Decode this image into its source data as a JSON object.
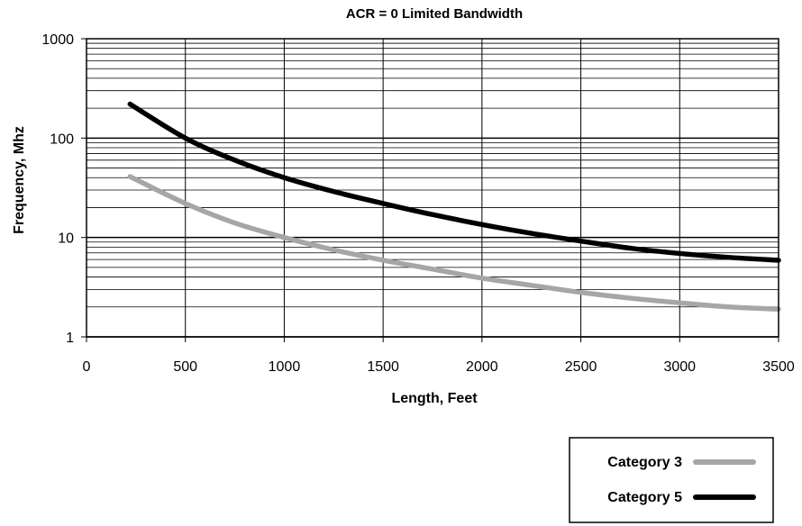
{
  "chart_data": {
    "type": "line",
    "title": "ACR = 0 Limited Bandwidth",
    "xlabel": "Length, Feet",
    "ylabel": "Frequency, Mhz",
    "xlim": [
      0,
      3500
    ],
    "ylim": [
      1,
      1000
    ],
    "y_scale": "log",
    "x_ticks": [
      "0",
      "500",
      "1000",
      "1500",
      "2000",
      "2500",
      "3000",
      "3500"
    ],
    "y_ticks": [
      "1",
      "10",
      "100",
      "1000"
    ],
    "grid": true,
    "legend_position": "bottom-right",
    "series": [
      {
        "name": "Category 3",
        "color": "#a6a6a6",
        "x": [
          220,
          500,
          750,
          1000,
          1250,
          1500,
          1750,
          2000,
          2250,
          2500,
          2750,
          3000,
          3250,
          3500
        ],
        "y": [
          41,
          22,
          14,
          10,
          7.5,
          5.9,
          4.8,
          3.9,
          3.3,
          2.8,
          2.45,
          2.2,
          2.0,
          1.9
        ]
      },
      {
        "name": "Category 5",
        "color": "#000000",
        "x": [
          220,
          500,
          750,
          1000,
          1250,
          1500,
          1750,
          2000,
          2250,
          2500,
          2750,
          3000,
          3250,
          3500
        ],
        "y": [
          220,
          100,
          60,
          40,
          29,
          22,
          17,
          13.5,
          11,
          9.2,
          7.8,
          6.9,
          6.3,
          5.9
        ]
      }
    ]
  }
}
